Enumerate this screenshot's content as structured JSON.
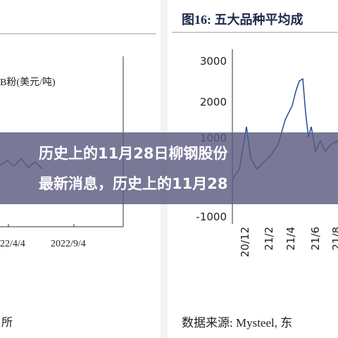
{
  "left_panel": {
    "unit_label": "B粉(美元/吨)",
    "dates": [
      "22/4/4",
      "2022/9/4"
    ],
    "footer": "所"
  },
  "right_panel": {
    "title": "图16:  五大品种平均成",
    "yticks": [
      "3000",
      "2000",
      "1000",
      "-1000"
    ],
    "xticks": [
      "20/12",
      "21/2",
      "21/4",
      "21/6",
      "21/8"
    ],
    "source": "数据来源: Mysteel, 东"
  },
  "overlay": {
    "title_lines": [
      "历史上的11月28日柳钢股份",
      "最新消息，历史上的11月28"
    ]
  }
}
